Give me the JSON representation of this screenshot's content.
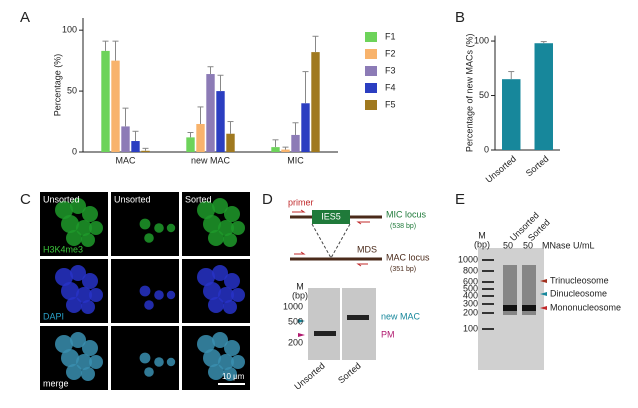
{
  "chart_data": [
    {
      "type": "bar",
      "panel_label": "A",
      "ylabel": "Percentage (%)",
      "categories": [
        "MAC",
        "new MAC",
        "MIC"
      ],
      "series": [
        {
          "name": "F1",
          "color": "#6dd35a",
          "values": [
            83,
            12,
            4
          ],
          "errors": [
            8,
            4,
            6
          ]
        },
        {
          "name": "F2",
          "color": "#f8b36c",
          "values": [
            75,
            23,
            2
          ],
          "errors": [
            16,
            14,
            2
          ]
        },
        {
          "name": "F3",
          "color": "#8c7bb6",
          "values": [
            21,
            64,
            14
          ],
          "errors": [
            15,
            6,
            10
          ]
        },
        {
          "name": "F4",
          "color": "#2b3ec1",
          "values": [
            9,
            50,
            40
          ],
          "errors": [
            8,
            13,
            26
          ]
        },
        {
          "name": "F5",
          "color": "#a0791f",
          "values": [
            1,
            15,
            82
          ],
          "errors": [
            2,
            10,
            13
          ]
        }
      ],
      "ylim": [
        0,
        110
      ],
      "yticks": [
        0,
        50,
        100
      ],
      "legend": "right"
    },
    {
      "type": "bar",
      "panel_label": "B",
      "ylabel": "Percentage of new MACs (%)",
      "categories": [
        "Unsorted",
        "Sorted"
      ],
      "values": [
        65,
        98
      ],
      "errors": [
        7,
        1.5
      ],
      "color": "#17879b",
      "ylim": [
        0,
        105
      ],
      "yticks": [
        0,
        50,
        100
      ]
    }
  ],
  "panel_c": {
    "label": "C",
    "columns": [
      "Unsorted",
      "Unsorted",
      "Sorted"
    ],
    "rows": [
      "H3K4me3",
      "DAPI",
      "merge"
    ],
    "scale_bar": "10 μm"
  },
  "panel_d": {
    "label": "D",
    "primer": "primer",
    "ies": "IES5",
    "mic_locus": "MIC locus",
    "mic_size": "(538 bp)",
    "mds": "MDS",
    "mac_locus": "MAC locus",
    "mac_size": "(351 bp)",
    "gel": {
      "marker": "M",
      "unit": "(bp)",
      "sizes": [
        1000,
        500,
        200
      ],
      "lanes": [
        "Unsorted",
        "Sorted"
      ],
      "bands": [
        "new MAC",
        "PM"
      ]
    }
  },
  "panel_e": {
    "label": "E",
    "marker": "M",
    "unit": "(bp)",
    "lanes": [
      "Unsorted",
      "Sorted"
    ],
    "doses": [
      50,
      50
    ],
    "dose_unit": "MNase U/mL",
    "sizes": [
      1000,
      800,
      600,
      500,
      400,
      300,
      200,
      100
    ],
    "bands": [
      "Trinucleosome",
      "Dinucleosome",
      "Mononucleosome"
    ]
  }
}
